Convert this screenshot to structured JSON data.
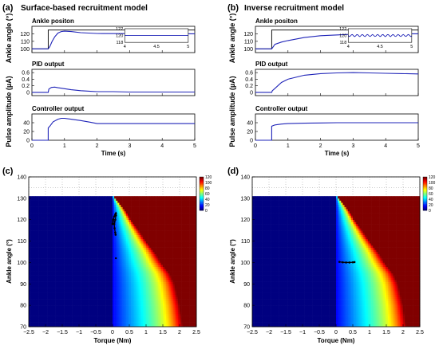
{
  "panel_labels": {
    "a": "(a)",
    "b": "(b)",
    "c": "(c)",
    "d": "(d)"
  },
  "column_titles": {
    "left": "Surface-based recruitment model",
    "right": "Inverse recruitment model"
  },
  "row_ylabels": {
    "ankle": "Ankle angle (°)",
    "pulse": "Pulse amplitude (µA)"
  },
  "colors": {
    "signal": "#1f24b8",
    "reference": "#000000",
    "axis": "#000000",
    "grid": "#999999",
    "marker": "#000000"
  },
  "colormap_name": "jet",
  "chart_data": [
    {
      "id": "a-ankle",
      "type": "line",
      "title": "Ankle positon",
      "xlim": [
        0,
        5
      ],
      "ylim": [
        95,
        130
      ],
      "xticks": [
        0,
        1,
        2,
        3,
        4,
        5
      ],
      "yticks": [
        100,
        110,
        120
      ],
      "show_xtick_labels": false,
      "series": [
        {
          "kind": "reference",
          "x": [
            0,
            0.5,
            0.5,
            5
          ],
          "y": [
            100,
            100,
            125,
            125
          ]
        },
        {
          "kind": "response",
          "x": [
            0,
            0.5,
            0.55,
            0.62,
            0.7,
            0.8,
            0.9,
            1.0,
            1.2,
            1.5,
            2.0,
            3.0,
            4.0,
            5.0
          ],
          "y": [
            100,
            100,
            103,
            110,
            116,
            121,
            123,
            123.5,
            123,
            121.5,
            120.5,
            120.2,
            120.1,
            120
          ]
        }
      ],
      "inset": {
        "xlim": [
          4,
          5
        ],
        "ylim": [
          118,
          122
        ],
        "xticks": [
          4,
          4.5,
          5
        ],
        "xtick_labels": [
          "4",
          "4.5",
          "5"
        ],
        "yticks": [
          118,
          120,
          122
        ],
        "series": [
          {
            "kind": "response",
            "x": [
              4,
              5
            ],
            "y": [
              120,
              120
            ]
          }
        ]
      }
    },
    {
      "id": "a-pid",
      "type": "line",
      "title": "PID output",
      "xlim": [
        0,
        5
      ],
      "ylim": [
        -0.1,
        0.7
      ],
      "xticks": [
        0,
        1,
        2,
        3,
        4,
        5
      ],
      "yticks": [
        0,
        0.2,
        0.4,
        0.6
      ],
      "show_xtick_labels": false,
      "series": [
        {
          "kind": "response",
          "x": [
            0,
            0.5,
            0.52,
            0.6,
            0.7,
            0.8,
            1.0,
            1.2,
            1.5,
            1.8,
            2.0,
            2.5,
            3.0,
            4.0,
            5.0
          ],
          "y": [
            0,
            0,
            0.1,
            0.15,
            0.16,
            0.14,
            0.11,
            0.08,
            0.05,
            0.03,
            0.02,
            0.02,
            0.01,
            0.01,
            0.01
          ]
        }
      ]
    },
    {
      "id": "a-controller",
      "type": "line",
      "title": "Controller output",
      "xlim": [
        0,
        5
      ],
      "ylim": [
        0,
        60
      ],
      "xticks": [
        0,
        1,
        2,
        3,
        4,
        5
      ],
      "xtick_labels": [
        "0",
        "1",
        "2",
        "3",
        "4",
        "5"
      ],
      "yticks": [
        0,
        20,
        40
      ],
      "xlabel": "Time (s)",
      "series": [
        {
          "kind": "response",
          "x": [
            0,
            0.5,
            0.5,
            0.55,
            0.65,
            0.8,
            0.9,
            1.0,
            1.2,
            1.5,
            1.8,
            2.0,
            2.5,
            3.0,
            4.0,
            5.0
          ],
          "y": [
            0,
            0,
            28,
            32,
            42,
            48,
            50,
            50,
            48,
            45,
            41,
            38,
            38,
            38,
            38,
            38
          ]
        }
      ]
    },
    {
      "id": "b-ankle",
      "type": "line",
      "title": "Ankle positon",
      "xlim": [
        0,
        5
      ],
      "ylim": [
        95,
        130
      ],
      "xticks": [
        0,
        1,
        2,
        3,
        4,
        5
      ],
      "yticks": [
        100,
        110,
        120
      ],
      "show_xtick_labels": false,
      "series": [
        {
          "kind": "reference",
          "x": [
            0,
            0.5,
            0.5,
            5
          ],
          "y": [
            100,
            100,
            125,
            125
          ]
        },
        {
          "kind": "response",
          "x": [
            0,
            0.5,
            0.6,
            0.8,
            1.0,
            1.5,
            2.0,
            3.0,
            4.0,
            5.0
          ],
          "y": [
            100,
            100,
            106,
            109,
            111,
            115,
            117.5,
            119.5,
            120,
            120
          ]
        }
      ],
      "inset": {
        "xlim": [
          4,
          5
        ],
        "ylim": [
          118,
          122
        ],
        "xticks": [
          4,
          4.5,
          5
        ],
        "xtick_labels": [
          "4",
          "4.5",
          "5"
        ],
        "yticks": [
          118,
          120,
          122
        ],
        "series": [
          {
            "kind": "response",
            "ripple": true,
            "x": [
              4,
              5
            ],
            "y": [
              120,
              120
            ]
          }
        ]
      }
    },
    {
      "id": "b-pid",
      "type": "line",
      "title": "PID output",
      "xlim": [
        0,
        5
      ],
      "ylim": [
        -0.1,
        0.7
      ],
      "xticks": [
        0,
        1,
        2,
        3,
        4,
        5
      ],
      "yticks": [
        0,
        0.2,
        0.4,
        0.6
      ],
      "show_xtick_labels": false,
      "series": [
        {
          "kind": "response",
          "x": [
            0,
            0.5,
            0.52,
            0.6,
            0.8,
            1.0,
            1.5,
            2.0,
            2.5,
            3.0,
            3.5,
            4.0,
            4.5,
            5.0
          ],
          "y": [
            0,
            0,
            0.05,
            0.12,
            0.3,
            0.4,
            0.52,
            0.57,
            0.59,
            0.6,
            0.59,
            0.58,
            0.57,
            0.56
          ]
        }
      ]
    },
    {
      "id": "b-controller",
      "type": "line",
      "title": "Controller output",
      "xlim": [
        0,
        5
      ],
      "ylim": [
        0,
        60
      ],
      "xticks": [
        0,
        1,
        2,
        3,
        4,
        5
      ],
      "xtick_labels": [
        "0",
        "1",
        "2",
        "3",
        "4",
        "5"
      ],
      "yticks": [
        0,
        20,
        40
      ],
      "xlabel": "Time (s)",
      "series": [
        {
          "kind": "response",
          "x": [
            0,
            0.5,
            0.5,
            0.6,
            0.8,
            1.0,
            1.5,
            2.0,
            2.5,
            3.0,
            4.0,
            5.0
          ],
          "y": [
            0,
            0,
            32,
            35,
            37,
            38,
            39,
            39.5,
            40,
            40,
            40,
            40
          ]
        }
      ]
    },
    {
      "id": "c-heatmap",
      "type": "heatmap",
      "xlabel": "Torque (Nm)",
      "ylabel": "Ankle angle (°)",
      "xlim": [
        -2.5,
        2.5
      ],
      "ylim": [
        70,
        140
      ],
      "data_ymax": 131,
      "xticks": [
        -2.5,
        -2,
        -1.5,
        -1,
        -0.5,
        0,
        0.5,
        1,
        1.5,
        2,
        2.5
      ],
      "xtick_labels": [
        "−2.5",
        "−2",
        "−1.5",
        "−1",
        "−0.5",
        "0",
        "0.5",
        "1",
        "1.5",
        "2",
        "2.5"
      ],
      "yticks": [
        70,
        80,
        90,
        100,
        110,
        120,
        130,
        140
      ],
      "ytick_labels": [
        "70",
        "80",
        "90",
        "100",
        "110",
        "120",
        "130",
        "140"
      ],
      "colorbar": {
        "range": [
          0,
          120
        ],
        "ticks": [
          0,
          20,
          40,
          60,
          80,
          100,
          120
        ],
        "tick_labels": [
          "0",
          "20",
          "40",
          "60",
          "80",
          "100",
          "120"
        ]
      },
      "boundary": {
        "angle": [
          70,
          75,
          80,
          90,
          95,
          100,
          105,
          110,
          120,
          125,
          130,
          131
        ],
        "torque": [
          2.1,
          2.05,
          2.0,
          1.85,
          1.7,
          1.45,
          1.25,
          1.0,
          0.55,
          0.35,
          0.1,
          0.05
        ]
      },
      "trajectory": {
        "x": [
          0.0,
          0.02,
          0.05,
          0.08,
          0.1,
          0.1,
          0.08,
          0.06,
          0.05,
          0.06,
          0.08,
          0.09
        ],
        "y": [
          118,
          120,
          121.5,
          122.5,
          123,
          122,
          120,
          119,
          118,
          116,
          114,
          113
        ]
      },
      "outlier": {
        "x": 0.1,
        "y": 102
      }
    },
    {
      "id": "d-heatmap",
      "type": "heatmap",
      "xlabel": "Torque (Nm)",
      "ylabel": "Ankle angle (°)",
      "xlim": [
        -2.5,
        2.5
      ],
      "ylim": [
        70,
        140
      ],
      "data_ymax": 131,
      "xticks": [
        -2.5,
        -2,
        -1.5,
        -1,
        -0.5,
        0,
        0.5,
        1,
        1.5,
        2,
        2.5
      ],
      "xtick_labels": [
        "−2.5",
        "−2",
        "−1.5",
        "−1",
        "−0.5",
        "0",
        "0.5",
        "1",
        "1.5",
        "2",
        "2.5"
      ],
      "yticks": [
        70,
        80,
        90,
        100,
        110,
        120,
        130,
        140
      ],
      "ytick_labels": [
        "70",
        "80",
        "90",
        "100",
        "110",
        "120",
        "130",
        "140"
      ],
      "colorbar": {
        "range": [
          0,
          120
        ],
        "ticks": [
          0,
          20,
          40,
          60,
          80,
          100,
          120
        ],
        "tick_labels": [
          "0",
          "20",
          "40",
          "60",
          "80",
          "100",
          "120"
        ]
      },
      "boundary": {
        "angle": [
          70,
          75,
          80,
          90,
          95,
          100,
          105,
          110,
          120,
          125,
          130,
          131
        ],
        "torque": [
          2.1,
          2.05,
          2.0,
          1.85,
          1.7,
          1.45,
          1.25,
          1.0,
          0.55,
          0.35,
          0.1,
          0.05
        ]
      },
      "trajectory": {
        "x": [
          0.1,
          0.2,
          0.3,
          0.4,
          0.5,
          0.55
        ],
        "y": [
          100.3,
          100.1,
          100.0,
          100.0,
          100.1,
          100.2
        ]
      },
      "outlier": null
    }
  ]
}
